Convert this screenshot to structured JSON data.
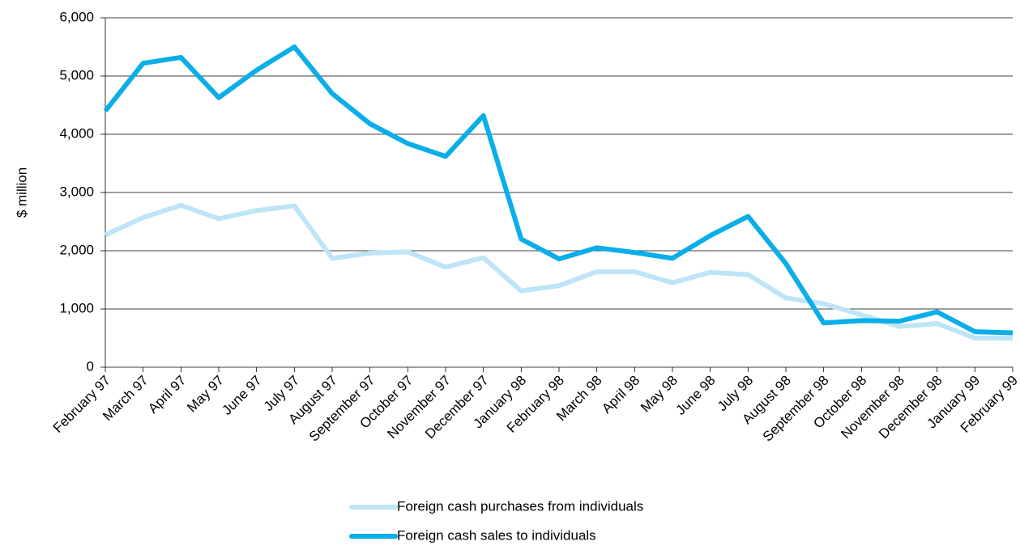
{
  "chart_data": {
    "type": "line",
    "ylabel": "$ million",
    "categories": [
      "February 97",
      "March 97",
      "April 97",
      "May 97",
      "June 97",
      "July 97",
      "August 97",
      "September 97",
      "October 97",
      "November 97",
      "December 97",
      "January 98",
      "February 98",
      "March 98",
      "April 98",
      "May 98",
      "June 98",
      "July 98",
      "August 98",
      "September 98",
      "October 98",
      "November 98",
      "December 98",
      "January 99",
      "February 99"
    ],
    "series": [
      {
        "name": "Foreign cash purchases from individuals",
        "color": "#bde5f7",
        "values": [
          2270,
          2570,
          2780,
          2550,
          2690,
          2770,
          1870,
          1960,
          1980,
          1720,
          1880,
          1310,
          1400,
          1640,
          1640,
          1450,
          1630,
          1590,
          1190,
          1090,
          900,
          700,
          750,
          500,
          500
        ]
      },
      {
        "name": "Foreign cash sales to individuals",
        "color": "#0aaee8",
        "values": [
          4400,
          5220,
          5320,
          4630,
          5100,
          5500,
          4700,
          4180,
          3840,
          3620,
          4320,
          2200,
          1860,
          2050,
          1970,
          1870,
          2260,
          2590,
          1780,
          760,
          800,
          790,
          950,
          610,
          590
        ]
      }
    ],
    "ylim": [
      0,
      6000
    ],
    "yticks": [
      0,
      {
        "value": 1000,
        "label": "1,000"
      },
      {
        "value": 2000,
        "label": "2,000"
      },
      {
        "value": 3000,
        "label": "3,000"
      },
      {
        "value": 4000,
        "label": "4,000"
      },
      {
        "value": 5000,
        "label": "5,000"
      },
      {
        "value": 6000,
        "label": "6,000"
      }
    ],
    "grid": true,
    "legend": "bottom"
  }
}
